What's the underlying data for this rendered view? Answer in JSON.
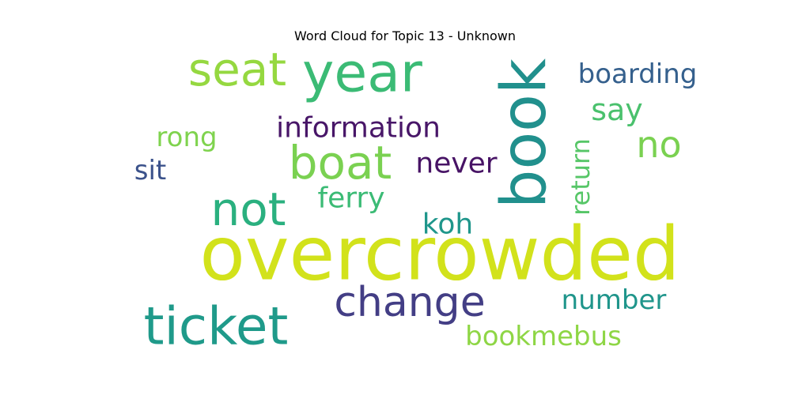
{
  "chart_data": {
    "type": "wordcloud",
    "title": "Word Cloud for Topic 13 - Unknown",
    "words": [
      {
        "text": "overcrowded",
        "color": "#d2e21b"
      },
      {
        "text": "book",
        "color": "#21908d"
      },
      {
        "text": "year",
        "color": "#3bbb75"
      },
      {
        "text": "ticket",
        "color": "#1f9a8a"
      },
      {
        "text": "boat",
        "color": "#7ad151"
      },
      {
        "text": "seat",
        "color": "#95d840"
      },
      {
        "text": "not",
        "color": "#2ab07f"
      },
      {
        "text": "change",
        "color": "#433e85"
      },
      {
        "text": "no",
        "color": "#7ad151"
      },
      {
        "text": "say",
        "color": "#4ac16d"
      },
      {
        "text": "information",
        "color": "#481668"
      },
      {
        "text": "never",
        "color": "#471365"
      },
      {
        "text": "ferry",
        "color": "#3bbb75"
      },
      {
        "text": "koh",
        "color": "#1f968b"
      },
      {
        "text": "boarding",
        "color": "#35608d"
      },
      {
        "text": "return",
        "color": "#56c667"
      },
      {
        "text": "rong",
        "color": "#7fd34e"
      },
      {
        "text": "sit",
        "color": "#3b528b"
      },
      {
        "text": "number",
        "color": "#1f958b"
      },
      {
        "text": "bookmebus",
        "color": "#8ed645"
      }
    ]
  }
}
